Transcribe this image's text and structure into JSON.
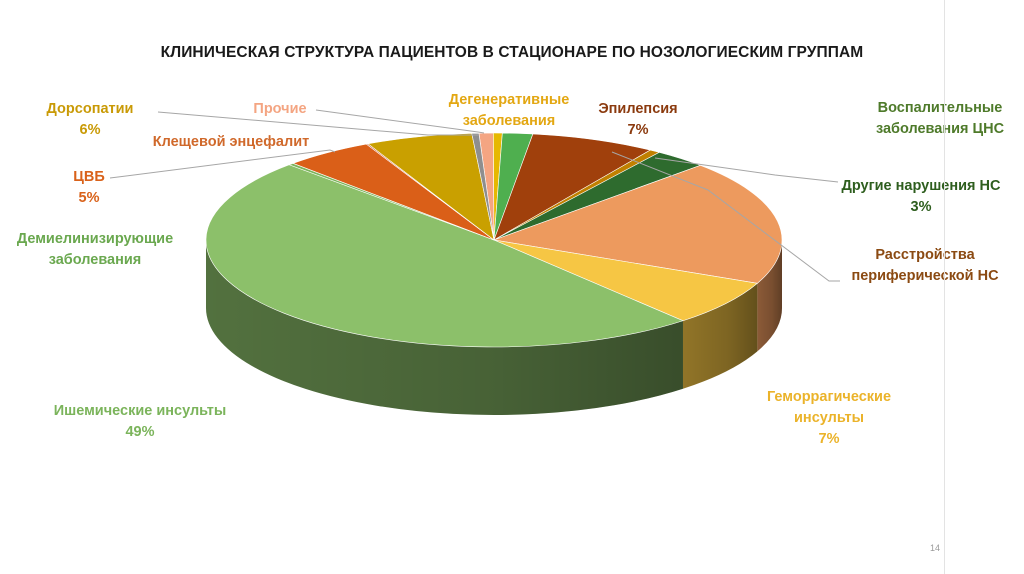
{
  "slide": {
    "title": "КЛИНИЧЕСКАЯ СТРУКТУРА ПАЦИЕНТОВ  В СТАЦИОНАРЕ ПО НОЗОЛОГИЕСКИМ ГРУППАМ",
    "page_number": "14"
  },
  "chart_data": {
    "type": "pie",
    "title": "КЛИНИЧЕСКАЯ СТРУКТУРА ПАЦИЕНТОВ  В СТАЦИОНАРЕ ПО НОЗОЛОГИЕСКИМ ГРУППАМ",
    "style": "3d",
    "slices": [
      {
        "label": "Прочие",
        "percent_label": "",
        "value": 0.8,
        "color": "#F4A582",
        "label_color": "#F4A582"
      },
      {
        "label": "Дегенеративные заболевания",
        "percent_label": "",
        "value": 0.5,
        "color": "#E6B800",
        "label_color": "#E3A712"
      },
      {
        "label": "",
        "percent_label": "",
        "value": 1.7,
        "color": "#4FAF4F",
        "label_color": "#4FAF4F"
      },
      {
        "label": "Эпилепсия",
        "percent_label": "7%",
        "value": 7,
        "color": "#A0400C",
        "label_color": "#8B3A0E"
      },
      {
        "label": "Воспалительные заболевания ЦНС",
        "percent_label": "",
        "value": 0.6,
        "color": "#C08000",
        "label_color": "#4E7A2A"
      },
      {
        "label": "Другие нарушения НС",
        "percent_label": "3%",
        "value": 3,
        "color": "#2E6B2E",
        "label_color": "#2E5E1E"
      },
      {
        "label": "Расстройства периферической НС",
        "percent_label": "",
        "value": 19,
        "color": "#ED9A5E",
        "label_color": "#8B4A12"
      },
      {
        "label": "Геморрагические инсульты",
        "percent_label": "7%",
        "value": 7,
        "color": "#F6C644",
        "label_color": "#EBB32A"
      },
      {
        "label": "Ишемические инсульты",
        "percent_label": "49%",
        "value": 49,
        "color": "#8CC06A",
        "label_color": "#7BB45B"
      },
      {
        "label": "Демиелинизирующие заболевания",
        "percent_label": "",
        "value": 0.3,
        "color": "#7BB45B",
        "label_color": "#6AA84F"
      },
      {
        "label": "ЦВБ",
        "percent_label": "5%",
        "value": 5,
        "color": "#DA5F18",
        "label_color": "#D9621A"
      },
      {
        "label": "Клещевой энцефалит",
        "percent_label": "",
        "value": 0.1,
        "color": "#C9572A",
        "label_color": "#D0692B"
      },
      {
        "label": "Дорсопатии",
        "percent_label": "6%",
        "value": 6,
        "color": "#C9A000",
        "label_color": "#C99A06"
      },
      {
        "label": "",
        "percent_label": "",
        "value": 0.4,
        "color": "#8E8E8E",
        "label_color": "#8E8E8E"
      }
    ]
  },
  "labels": [
    {
      "id": "dorsopatii",
      "lines": [
        "Дорсопатии",
        "6%"
      ],
      "color": "#C99A06"
    },
    {
      "id": "prochie",
      "lines": [
        "Прочие"
      ],
      "color": "#F4A582"
    },
    {
      "id": "degenerativ",
      "lines": [
        "Дегенеративные",
        "заболевания"
      ],
      "color": "#E3A712"
    },
    {
      "id": "epilepsia",
      "lines": [
        "Эпилепсия",
        "7%"
      ],
      "color": "#8B3A0E"
    },
    {
      "id": "vospalit",
      "lines": [
        "Воспалительные",
        "заболевания ЦНС"
      ],
      "color": "#4E7A2A"
    },
    {
      "id": "kleshch",
      "lines": [
        "Клещевой энцефалит"
      ],
      "color": "#D0692B"
    },
    {
      "id": "cvb",
      "lines": [
        "ЦВБ",
        "5%"
      ],
      "color": "#D9621A"
    },
    {
      "id": "drugie",
      "lines": [
        "Другие нарушения НС",
        "3%"
      ],
      "color": "#2E5E1E"
    },
    {
      "id": "demielin",
      "lines": [
        "Демиелинизирующие",
        "заболевания"
      ],
      "color": "#6AA84F"
    },
    {
      "id": "rasstr",
      "lines": [
        "Расстройства",
        "периферической НС"
      ],
      "color": "#8B4A12"
    },
    {
      "id": "gemorr",
      "lines": [
        "Геморрагические",
        "инсульты",
        "7%"
      ],
      "color": "#EBB32A"
    },
    {
      "id": "ishem",
      "lines": [
        "Ишемические инсульты",
        "49%"
      ],
      "color": "#7BB45B"
    }
  ]
}
